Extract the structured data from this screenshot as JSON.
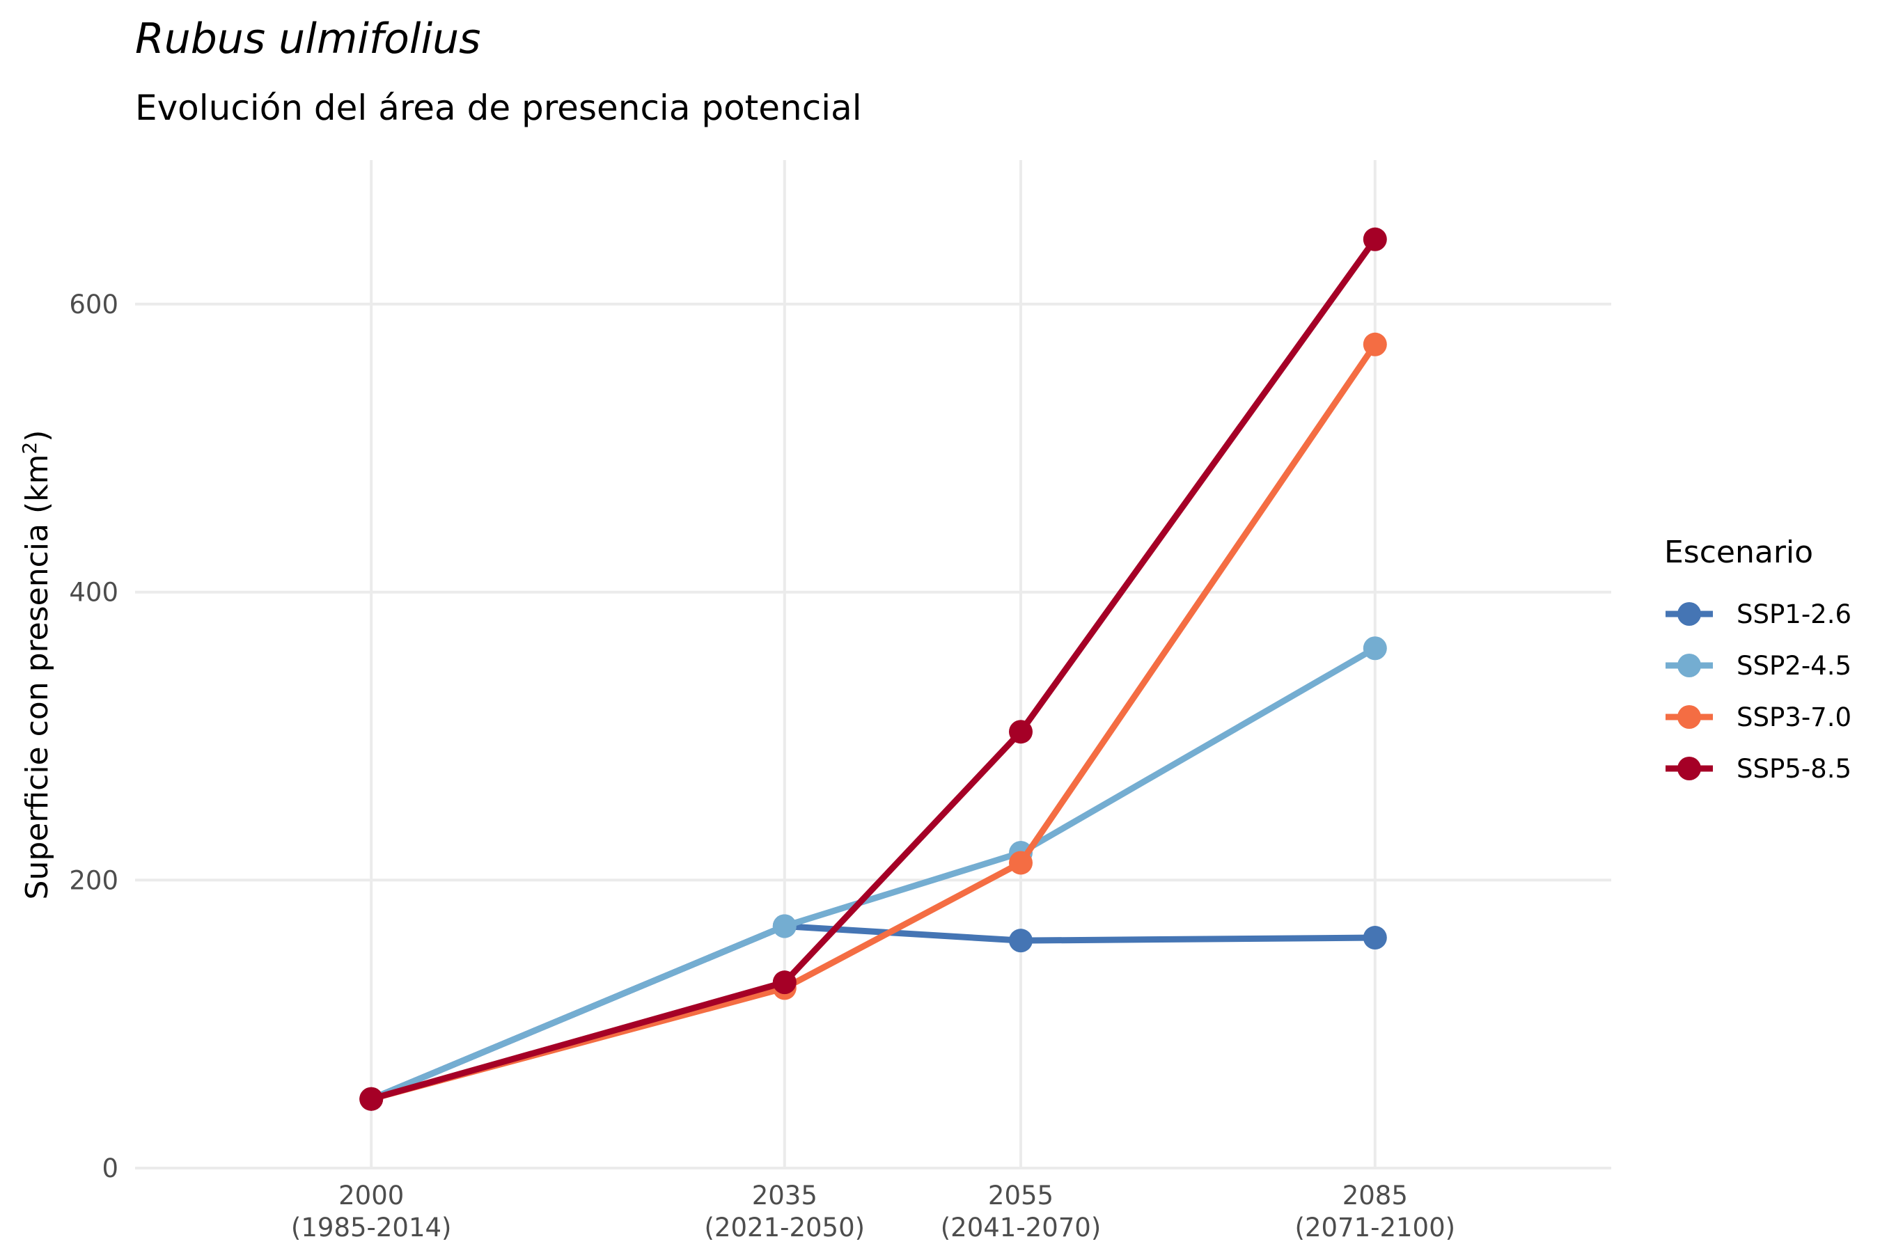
{
  "chart_data": {
    "type": "line",
    "title": "Rubus ulmifolius",
    "subtitle": "Evolución del área de presencia potencial",
    "ylabel_main": "Superficie con presencia (km",
    "ylabel_sup": "2",
    "ylabel_close": ")",
    "x": [
      2000,
      2035,
      2055,
      2085
    ],
    "x_tick_labels": [
      {
        "line1": "2000",
        "line2": "(1985-2014)"
      },
      {
        "line1": "2035",
        "line2": "(2021-2050)"
      },
      {
        "line1": "2055",
        "line2": "(2041-2070)"
      },
      {
        "line1": "2085",
        "line2": "(2071-2100)"
      }
    ],
    "xlim": [
      1980,
      2105
    ],
    "ylim": [
      0,
      700
    ],
    "y_ticks": [
      0,
      200,
      400,
      600
    ],
    "grid": true,
    "legend_title": "Escenario",
    "legend_position": "right",
    "series": [
      {
        "name": "SSP1-2.6",
        "color": "#4575b4",
        "values": [
          48,
          168,
          158,
          160
        ]
      },
      {
        "name": "SSP2-4.5",
        "color": "#74add1",
        "values": [
          48,
          168,
          219,
          361
        ]
      },
      {
        "name": "SSP3-7.0",
        "color": "#f46d43",
        "values": [
          48,
          125,
          212,
          572
        ]
      },
      {
        "name": "SSP5-8.5",
        "color": "#a50026",
        "values": [
          48,
          129,
          303,
          645
        ]
      }
    ]
  }
}
